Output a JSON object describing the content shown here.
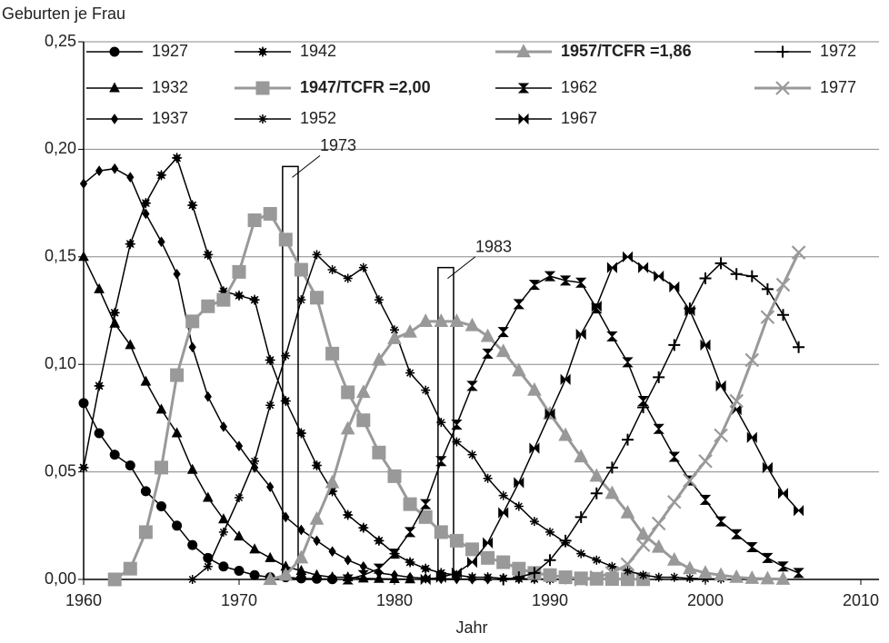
{
  "chart_data": {
    "type": "line",
    "y_label": "Geburten je Frau",
    "x_label": "Jahr",
    "x": [
      1960,
      1961,
      1962,
      1963,
      1964,
      1965,
      1966,
      1967,
      1968,
      1969,
      1970,
      1971,
      1972,
      1973,
      1974,
      1975,
      1976,
      1977,
      1978,
      1979,
      1980,
      1981,
      1982,
      1983,
      1984,
      1985,
      1986,
      1987,
      1988,
      1989,
      1990,
      1991,
      1992,
      1993,
      1994,
      1995,
      1996,
      1997,
      1998,
      1999,
      2000,
      2001,
      2002,
      2003,
      2004,
      2005,
      2006
    ],
    "xlim": [
      1960,
      2010
    ],
    "xticks": [
      1960,
      1970,
      1980,
      1990,
      2000,
      2010
    ],
    "ylim": [
      0,
      0.25
    ],
    "yticks": [
      {
        "value": 0,
        "label": "0,00"
      },
      {
        "value": 0.05,
        "label": "0,05"
      },
      {
        "value": 0.1,
        "label": "0,10"
      },
      {
        "value": 0.15,
        "label": "0,15"
      },
      {
        "value": 0.2,
        "label": "0,20"
      },
      {
        "value": 0.25,
        "label": "0,25"
      }
    ],
    "grid": true,
    "series": [
      {
        "name": "1927",
        "color": "#000000",
        "marker": "circle",
        "bold": false,
        "values": [
          0.082,
          0.068,
          0.058,
          0.053,
          0.041,
          0.034,
          0.025,
          0.016,
          0.01,
          0.006,
          0.004,
          0.002,
          0.001,
          0.001,
          0.0005,
          0.0003,
          0.0001,
          null,
          null,
          null,
          null,
          null,
          null,
          null,
          null,
          null,
          null,
          null,
          null,
          null,
          null,
          null,
          null,
          null,
          null,
          null,
          null,
          null,
          null,
          null,
          null,
          null,
          null,
          null,
          null,
          null,
          null
        ]
      },
      {
        "name": "1932",
        "color": "#000000",
        "marker": "triangle",
        "bold": false,
        "values": [
          0.15,
          0.135,
          0.119,
          0.109,
          0.092,
          0.079,
          0.068,
          0.051,
          0.038,
          0.028,
          0.02,
          0.014,
          0.01,
          0.006,
          0.004,
          0.002,
          0.001,
          0.001,
          0.0005,
          0.0003,
          0.0002,
          0.0001,
          null,
          null,
          null,
          null,
          null,
          null,
          null,
          null,
          null,
          null,
          null,
          null,
          null,
          null,
          null,
          null,
          null,
          null,
          null,
          null,
          null,
          null,
          null,
          null,
          null
        ]
      },
      {
        "name": "1937",
        "color": "#000000",
        "marker": "diamond",
        "bold": false,
        "values": [
          0.184,
          0.19,
          0.191,
          0.187,
          0.17,
          0.157,
          0.142,
          0.108,
          0.085,
          0.071,
          0.062,
          0.052,
          0.043,
          0.029,
          0.023,
          0.018,
          0.013,
          0.009,
          0.006,
          0.003,
          0.002,
          0.001,
          0.0005,
          0.0003,
          0.0002,
          0.0001,
          0.0001,
          null,
          null,
          null,
          null,
          null,
          null,
          null,
          null,
          null,
          null,
          null,
          null,
          null,
          null,
          null,
          null,
          null,
          null,
          null,
          null
        ]
      },
      {
        "name": "1942",
        "color": "#000000",
        "marker": "star",
        "bold": false,
        "values": [
          0.052,
          0.09,
          0.124,
          0.156,
          0.175,
          0.188,
          0.196,
          0.174,
          0.151,
          0.134,
          0.132,
          0.13,
          0.102,
          0.083,
          0.068,
          0.053,
          0.041,
          0.03,
          0.024,
          0.018,
          0.012,
          0.008,
          0.005,
          0.003,
          0.002,
          0.001,
          0.001,
          0.0005,
          0.0003,
          0.0002,
          0.0001,
          0.0001,
          null,
          null,
          null,
          null,
          null,
          null,
          null,
          null,
          null,
          null,
          null,
          null,
          null,
          null,
          null
        ]
      },
      {
        "name": "1947/TCFR =2,00",
        "color": "#999999",
        "marker": "square",
        "bold": true,
        "values": [
          null,
          null,
          0.0,
          0.005,
          0.022,
          0.052,
          0.095,
          0.12,
          0.127,
          0.13,
          0.143,
          0.167,
          0.17,
          0.158,
          0.144,
          0.131,
          0.105,
          0.087,
          0.074,
          0.059,
          0.048,
          0.035,
          0.029,
          0.022,
          0.018,
          0.014,
          0.01,
          0.008,
          0.005,
          0.003,
          0.002,
          0.001,
          0.0005,
          0.0003,
          0.0002,
          0.0001,
          0.0001,
          null,
          null,
          null,
          null,
          null,
          null,
          null,
          null,
          null,
          null
        ]
      },
      {
        "name": "1952",
        "color": "#000000",
        "marker": "asterisk",
        "bold": false,
        "values": [
          null,
          null,
          null,
          null,
          null,
          null,
          null,
          0.0,
          0.006,
          0.022,
          0.038,
          0.055,
          0.081,
          0.104,
          0.13,
          0.151,
          0.144,
          0.14,
          0.145,
          0.13,
          0.116,
          0.096,
          0.088,
          0.073,
          0.064,
          0.058,
          0.047,
          0.039,
          0.034,
          0.027,
          0.022,
          0.017,
          0.012,
          0.009,
          0.006,
          0.004,
          0.002,
          0.001,
          0.001,
          0.0005,
          0.0003,
          0.0002,
          null,
          null,
          null,
          null,
          null
        ]
      },
      {
        "name": "1957/TCFR =1,86",
        "color": "#999999",
        "marker": "triangle",
        "bold": true,
        "values": [
          null,
          null,
          null,
          null,
          null,
          null,
          null,
          null,
          null,
          null,
          null,
          null,
          0.0,
          0.002,
          0.01,
          0.028,
          0.045,
          0.07,
          0.087,
          0.102,
          0.112,
          0.115,
          0.12,
          0.12,
          0.12,
          0.118,
          0.113,
          0.106,
          0.097,
          0.088,
          0.077,
          0.067,
          0.057,
          0.048,
          0.04,
          0.031,
          0.021,
          0.015,
          0.009,
          0.005,
          0.003,
          0.002,
          0.001,
          0.0005,
          0.0003,
          0.0001,
          null
        ]
      },
      {
        "name": "1962",
        "color": "#000000",
        "marker": "hourglass",
        "bold": false,
        "values": [
          null,
          null,
          null,
          null,
          null,
          null,
          null,
          null,
          null,
          null,
          null,
          null,
          null,
          null,
          null,
          null,
          null,
          0.0,
          0.002,
          0.005,
          0.012,
          0.022,
          0.035,
          0.055,
          0.072,
          0.09,
          0.105,
          0.115,
          0.128,
          0.137,
          0.141,
          0.139,
          0.138,
          0.126,
          0.113,
          0.101,
          0.083,
          0.07,
          0.057,
          0.046,
          0.037,
          0.027,
          0.021,
          0.015,
          0.01,
          0.006,
          0.003
        ]
      },
      {
        "name": "1967",
        "color": "#000000",
        "marker": "bowtie",
        "bold": false,
        "values": [
          null,
          null,
          null,
          null,
          null,
          null,
          null,
          null,
          null,
          null,
          null,
          null,
          null,
          null,
          null,
          null,
          null,
          null,
          null,
          null,
          null,
          null,
          0.0,
          0.001,
          0.003,
          0.008,
          0.017,
          0.031,
          0.045,
          0.061,
          0.077,
          0.093,
          0.114,
          0.127,
          0.145,
          0.15,
          0.145,
          0.141,
          0.136,
          0.125,
          0.109,
          0.09,
          0.079,
          0.066,
          0.052,
          0.04,
          0.032
        ]
      },
      {
        "name": "1972",
        "color": "#000000",
        "marker": "plus",
        "bold": false,
        "values": [
          null,
          null,
          null,
          null,
          null,
          null,
          null,
          null,
          null,
          null,
          null,
          null,
          null,
          null,
          null,
          null,
          null,
          null,
          null,
          null,
          null,
          null,
          null,
          null,
          null,
          null,
          null,
          0.0,
          0.001,
          0.003,
          0.009,
          0.018,
          0.029,
          0.04,
          0.052,
          0.065,
          0.08,
          0.094,
          0.109,
          0.126,
          0.14,
          0.147,
          0.142,
          0.141,
          0.135,
          0.123,
          0.108
        ]
      },
      {
        "name": "1977",
        "color": "#999999",
        "marker": "cross",
        "bold": false,
        "values": [
          null,
          null,
          null,
          null,
          null,
          null,
          null,
          null,
          null,
          null,
          null,
          null,
          null,
          null,
          null,
          null,
          null,
          null,
          null,
          null,
          null,
          null,
          null,
          null,
          null,
          null,
          null,
          null,
          null,
          null,
          null,
          null,
          0.0,
          0.001,
          0.003,
          0.007,
          0.016,
          0.026,
          0.036,
          0.046,
          0.055,
          0.067,
          0.083,
          0.102,
          0.122,
          0.137,
          0.152
        ]
      }
    ],
    "annotations": [
      {
        "label": "1973",
        "x": 1973,
        "value": 0.192
      },
      {
        "label": "1983",
        "x": 1983,
        "value": 0.145
      }
    ]
  }
}
